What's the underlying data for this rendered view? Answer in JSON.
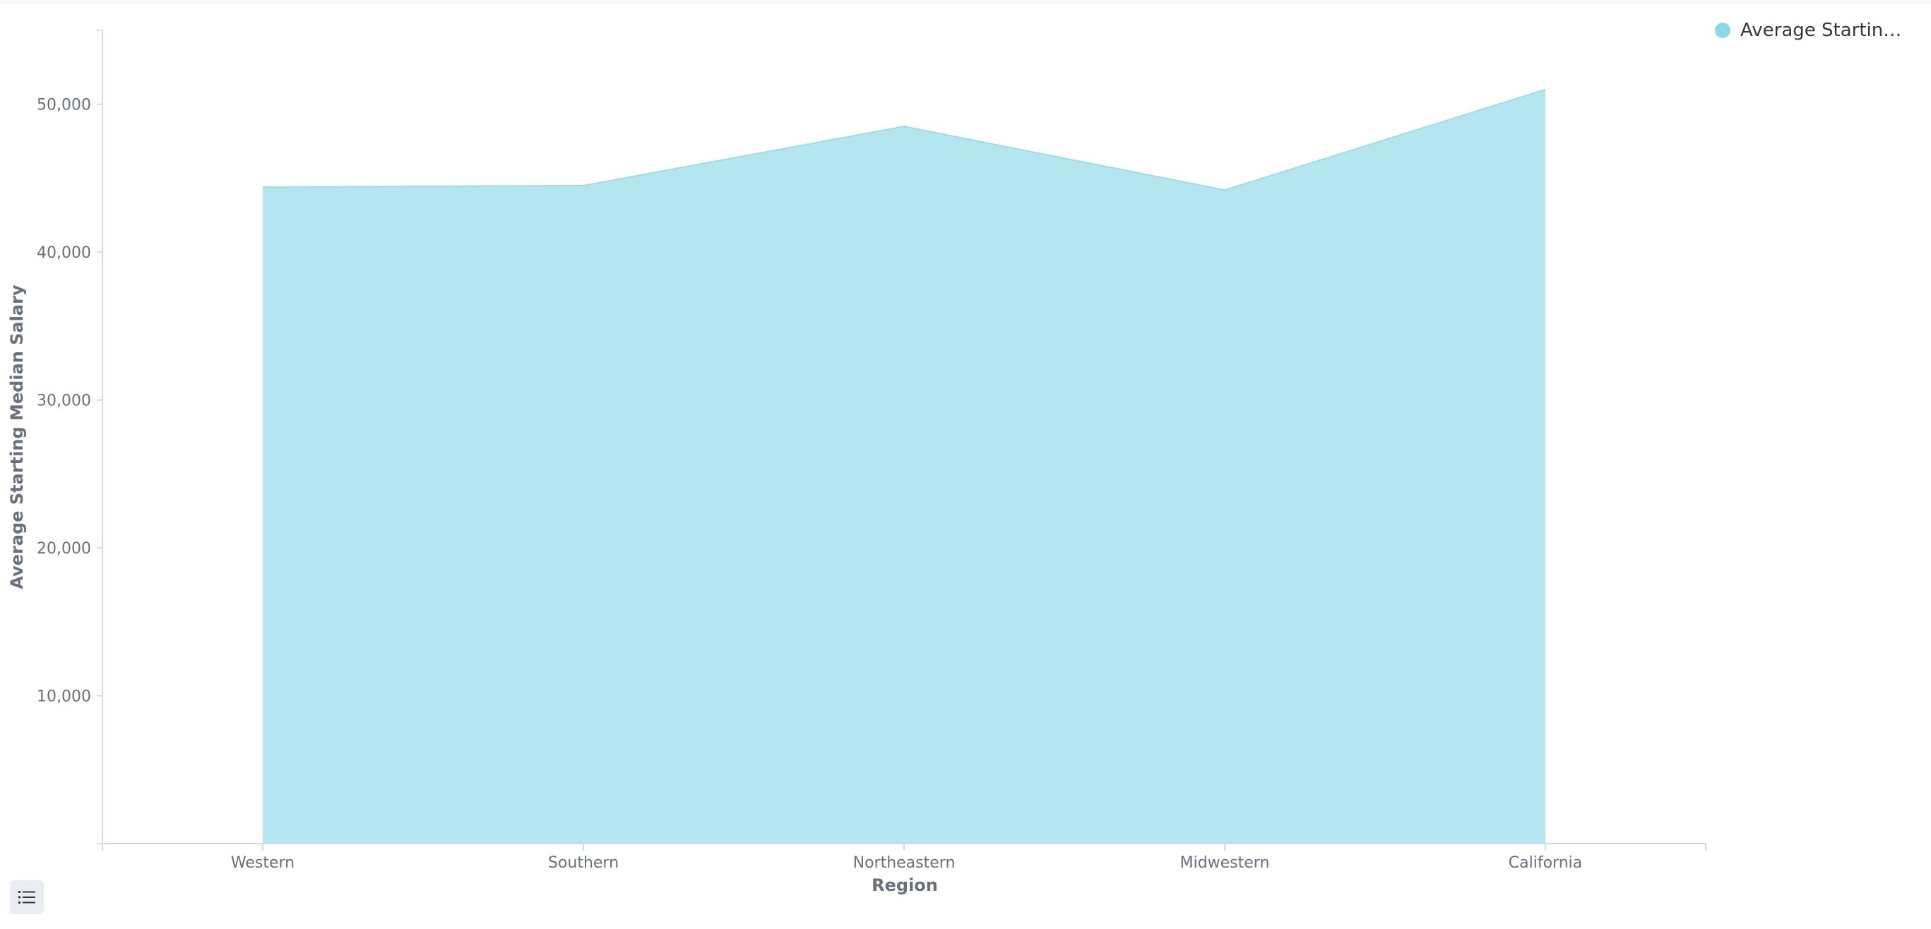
{
  "chart_data": {
    "type": "area",
    "categories": [
      "Western",
      "Southern",
      "Northeastern",
      "Midwestern",
      "California"
    ],
    "series": [
      {
        "name": "Average Starting Median Salary",
        "values": [
          44400,
          44500,
          48500,
          44200,
          51000
        ]
      }
    ],
    "xlabel": "Region",
    "ylabel": "Average Starting Median Salary",
    "yticks": [
      10000,
      20000,
      30000,
      40000,
      50000
    ],
    "ytick_labels": [
      "10,000",
      "20,000",
      "30,000",
      "40,000",
      "50,000"
    ],
    "ylim": [
      0,
      55000
    ],
    "grid": false,
    "legend_position": "top-right"
  },
  "legend": {
    "label": "Average Starting Median Salary",
    "display_label": "Average Starting M..."
  },
  "colors": {
    "area_fill": "#b4e6f0",
    "area_stroke": "#9fdbe8",
    "legend_swatch": "#8fd6e8",
    "axis": "#d3dae6"
  },
  "toolbar": {
    "table_toggle_icon": "list-icon"
  }
}
